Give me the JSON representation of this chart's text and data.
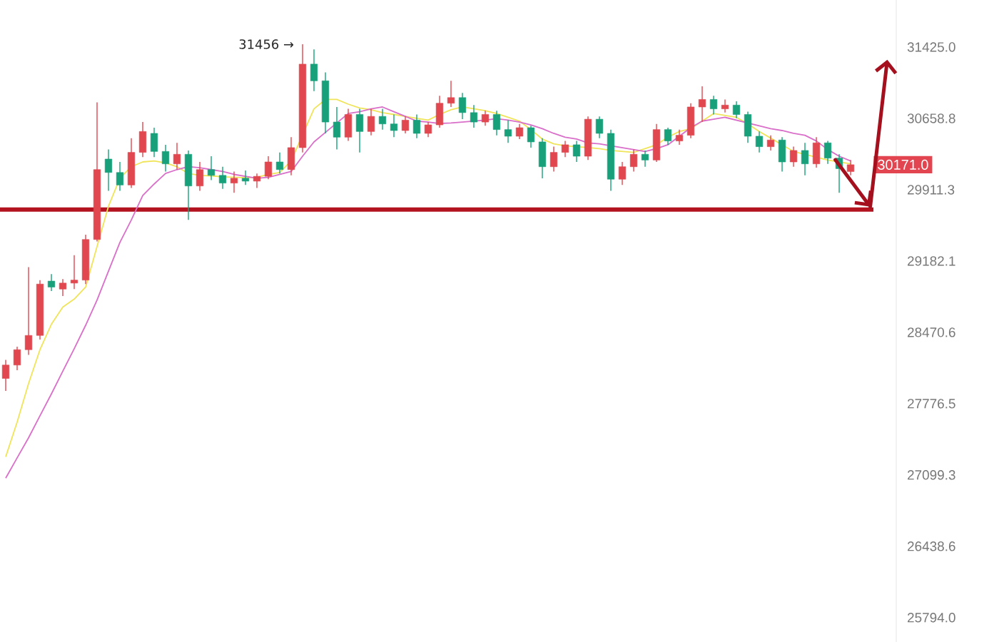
{
  "chart_data": {
    "type": "candlestick",
    "log": "y",
    "tick_labels": "y",
    "ylim": [
      25577,
      31941
    ],
    "yticks": [
      {
        "value": 25794.0,
        "label": "25794.0"
      },
      {
        "value": 26438.6,
        "label": "26438.6"
      },
      {
        "value": 27099.3,
        "label": "27099.3"
      },
      {
        "value": 27776.5,
        "label": "27776.5"
      },
      {
        "value": 28470.6,
        "label": "28470.6"
      },
      {
        "value": 29182.1,
        "label": "29182.1"
      },
      {
        "value": 29911.3,
        "label": "29911.3"
      },
      {
        "value": 30658.8,
        "label": "30658.8"
      },
      {
        "value": 31425.0,
        "label": "31425.0"
      }
    ],
    "categories": [
      null,
      null,
      null,
      null,
      null,
      null,
      null,
      null,
      null,
      null,
      null,
      null,
      null,
      null,
      null,
      null,
      null,
      null,
      null,
      null,
      null,
      null,
      null,
      null,
      null,
      null,
      null,
      null,
      null,
      null,
      null,
      null,
      null,
      null,
      null,
      null,
      null,
      null,
      null,
      null,
      null,
      null,
      null,
      null,
      null,
      null,
      null,
      null,
      null,
      null,
      null,
      null,
      null,
      null,
      null,
      null,
      null,
      null,
      null,
      null,
      null,
      null,
      null,
      null,
      null,
      null,
      null,
      null,
      null,
      null,
      null,
      null,
      null,
      null,
      null
    ],
    "ohlc": [
      [
        28020,
        28200,
        27900,
        28150
      ],
      [
        28150,
        28330,
        28100,
        28300
      ],
      [
        28300,
        29120,
        28250,
        28440
      ],
      [
        28440,
        28990,
        28400,
        28950
      ],
      [
        28980,
        29050,
        28880,
        28920
      ],
      [
        28900,
        29000,
        28830,
        28960
      ],
      [
        28960,
        29240,
        28900,
        28990
      ],
      [
        28990,
        29450,
        28950,
        29400
      ],
      [
        29400,
        30830,
        29380,
        30120
      ],
      [
        30230,
        30330,
        29900,
        30090
      ],
      [
        30090,
        30200,
        29900,
        29960
      ],
      [
        29960,
        30450,
        29930,
        30300
      ],
      [
        30300,
        30620,
        30250,
        30520
      ],
      [
        30500,
        30560,
        30250,
        30310
      ],
      [
        30310,
        30380,
        30100,
        30180
      ],
      [
        30180,
        30400,
        30120,
        30280
      ],
      [
        30280,
        30320,
        29600,
        29950
      ],
      [
        29950,
        30200,
        29900,
        30120
      ],
      [
        30120,
        30260,
        30010,
        30060
      ],
      [
        30060,
        30150,
        29920,
        29980
      ],
      [
        29980,
        30100,
        29880,
        30030
      ],
      [
        30030,
        30110,
        29960,
        30000
      ],
      [
        30000,
        30080,
        29930,
        30050
      ],
      [
        30050,
        30260,
        30020,
        30200
      ],
      [
        30200,
        30300,
        30080,
        30120
      ],
      [
        30120,
        30460,
        30060,
        30350
      ],
      [
        30350,
        31456,
        30300,
        31240
      ],
      [
        31240,
        31400,
        30950,
        31060
      ],
      [
        31060,
        31150,
        30500,
        30620
      ],
      [
        30620,
        30780,
        30330,
        30460
      ],
      [
        30460,
        30760,
        30420,
        30700
      ],
      [
        30700,
        30760,
        30300,
        30520
      ],
      [
        30520,
        30760,
        30480,
        30680
      ],
      [
        30680,
        30760,
        30540,
        30600
      ],
      [
        30600,
        30700,
        30460,
        30530
      ],
      [
        30530,
        30680,
        30500,
        30640
      ],
      [
        30640,
        30700,
        30450,
        30500
      ],
      [
        30500,
        30620,
        30460,
        30590
      ],
      [
        30590,
        30900,
        30560,
        30820
      ],
      [
        30820,
        31060,
        30780,
        30880
      ],
      [
        30880,
        30930,
        30650,
        30720
      ],
      [
        30720,
        30800,
        30560,
        30620
      ],
      [
        30620,
        30740,
        30580,
        30700
      ],
      [
        30700,
        30740,
        30480,
        30540
      ],
      [
        30540,
        30640,
        30400,
        30470
      ],
      [
        30470,
        30600,
        30440,
        30560
      ],
      [
        30560,
        30580,
        30350,
        30410
      ],
      [
        30410,
        30450,
        30030,
        30150
      ],
      [
        30150,
        30360,
        30100,
        30300
      ],
      [
        30300,
        30420,
        30250,
        30380
      ],
      [
        30380,
        30420,
        30200,
        30260
      ],
      [
        30260,
        30680,
        30220,
        30650
      ],
      [
        30650,
        30680,
        30450,
        30500
      ],
      [
        30500,
        30540,
        29900,
        30020
      ],
      [
        30020,
        30200,
        29960,
        30150
      ],
      [
        30150,
        30330,
        30100,
        30280
      ],
      [
        30280,
        30320,
        30150,
        30220
      ],
      [
        30220,
        30600,
        30200,
        30540
      ],
      [
        30540,
        30560,
        30380,
        30420
      ],
      [
        30420,
        30540,
        30380,
        30480
      ],
      [
        30480,
        30820,
        30450,
        30780
      ],
      [
        30780,
        31000,
        30620,
        30860
      ],
      [
        30860,
        30900,
        30700,
        30760
      ],
      [
        30760,
        30860,
        30720,
        30800
      ],
      [
        30800,
        30840,
        30660,
        30700
      ],
      [
        30700,
        30730,
        30400,
        30470
      ],
      [
        30470,
        30520,
        30300,
        30360
      ],
      [
        30360,
        30480,
        30320,
        30430
      ],
      [
        30430,
        30460,
        30100,
        30200
      ],
      [
        30200,
        30360,
        30150,
        30320
      ],
      [
        30320,
        30400,
        30060,
        30180
      ],
      [
        30180,
        30460,
        30140,
        30400
      ],
      [
        30400,
        30420,
        30180,
        30240
      ],
      [
        30240,
        30280,
        29880,
        30130
      ],
      [
        30100,
        30220,
        30060,
        30171
      ]
    ],
    "colors": [
      "#e0474f",
      "#e0474f",
      "#e0474f",
      "#e0474f",
      "#18a07a",
      "#e0474f",
      "#e0474f",
      "#e0474f",
      "#e0474f",
      "#18a07a",
      "#18a07a",
      "#e0474f",
      "#e0474f",
      "#18a07a",
      "#18a07a",
      "#e0474f",
      "#18a07a",
      "#e0474f",
      "#18a07a",
      "#18a07a",
      "#e0474f",
      "#18a07a",
      "#e0474f",
      "#e0474f",
      "#18a07a",
      "#e0474f",
      "#e0474f",
      "#18a07a",
      "#18a07a",
      "#18a07a",
      "#e0474f",
      "#18a07a",
      "#e0474f",
      "#18a07a",
      "#18a07a",
      "#e0474f",
      "#18a07a",
      "#e0474f",
      "#e0474f",
      "#e0474f",
      "#18a07a",
      "#18a07a",
      "#e0474f",
      "#18a07a",
      "#18a07a",
      "#e0474f",
      "#18a07a",
      "#18a07a",
      "#e0474f",
      "#e0474f",
      "#18a07a",
      "#e0474f",
      "#18a07a",
      "#18a07a",
      "#e0474f",
      "#e0474f",
      "#18a07a",
      "#e0474f",
      "#18a07a",
      "#e0474f",
      "#e0474f",
      "#e0474f",
      "#18a07a",
      "#e0474f",
      "#18a07a",
      "#18a07a",
      "#18a07a",
      "#e0474f",
      "#18a07a",
      "#e0474f",
      "#18a07a",
      "#e0474f",
      "#18a07a",
      "#18a07a",
      "#e0474f"
    ],
    "series": [
      {
        "type": "line",
        "color": "#f0e45a",
        "values": [
          27270,
          27600,
          27970,
          28300,
          28550,
          28720,
          28800,
          28920,
          29330,
          29740,
          30030,
          30150,
          30200,
          30210,
          30190,
          30150,
          30080,
          30060,
          30055,
          30045,
          30040,
          30035,
          30040,
          30070,
          30090,
          30210,
          null,
          30760,
          30860,
          30860,
          30810,
          30770,
          30750,
          30720,
          30700,
          30680,
          30660,
          30640,
          30700,
          30750,
          30780,
          30760,
          30740,
          30710,
          30670,
          30630,
          30540,
          30440,
          30390,
          30370,
          30360,
          30350,
          30340,
          30320,
          30310,
          30300,
          30340,
          30380,
          30460,
          30520,
          30550,
          30630,
          30710,
          30690,
          30670,
          30600,
          30520,
          30450,
          30380,
          30310,
          30280,
          30250,
          30220,
          30200,
          30180
        ]
      },
      {
        "type": "line",
        "color": "#d96fc9",
        "values": [
          27070,
          27260,
          27450,
          27660,
          27870,
          28090,
          28310,
          28540,
          28790,
          29080,
          29370,
          29600,
          29850,
          29970,
          30080,
          30120,
          30150,
          30140,
          30120,
          30100,
          30070,
          30050,
          30030,
          30040,
          30070,
          30100,
          30260,
          30410,
          30510,
          30610,
          30710,
          30730,
          30760,
          30780,
          30730,
          30680,
          30630,
          30620,
          30605,
          30610,
          30620,
          30630,
          30640,
          30655,
          30640,
          30620,
          30590,
          30550,
          30500,
          30460,
          30440,
          30400,
          30390,
          30370,
          30350,
          30330,
          30310,
          30340,
          30380,
          30470,
          30560,
          30630,
          30650,
          30670,
          30640,
          30610,
          30580,
          30550,
          30530,
          30500,
          30480,
          30420,
          30330,
          30260,
          30210
        ]
      }
    ],
    "ref_lines": [
      {
        "axis": "y",
        "value": 29707,
        "color": "#b3121f"
      }
    ],
    "annotations": [
      "31456 →",
      "30171.0"
    ]
  }
}
